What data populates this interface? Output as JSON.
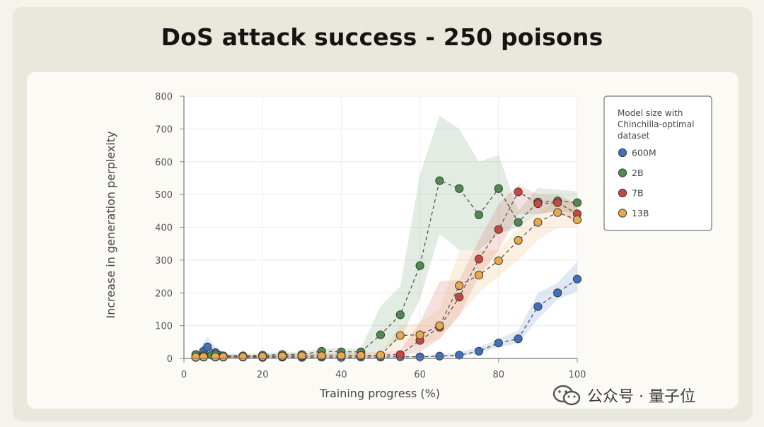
{
  "watermark": {
    "text": "公众号 · 量子位",
    "icon": "wechat-icon"
  },
  "colors": {
    "600M": "#3f6fbf",
    "2B": "#4f8a4e",
    "7B": "#c9473f",
    "13B": "#e9a94a"
  },
  "chart_data": {
    "type": "line",
    "title": "DoS attack success - 250 poisons",
    "xlabel": "Training progress (%)",
    "ylabel": "Increase in generation perplexity",
    "xlim": [
      0,
      100
    ],
    "ylim": [
      0,
      800
    ],
    "xticks": [
      "0",
      "20",
      "40",
      "60",
      "80",
      "100"
    ],
    "yticks": [
      "0",
      "100",
      "200",
      "300",
      "400",
      "500",
      "600",
      "700",
      "800"
    ],
    "grid": true,
    "legend": {
      "title": "Model size with Chinchilla-optimal dataset",
      "title_lines": [
        "Model size with",
        "Chinchilla-optimal",
        "dataset"
      ],
      "placement": "right",
      "entries": [
        "600M",
        "2B",
        "7B",
        "13B"
      ]
    },
    "series": [
      {
        "name": "600M",
        "x": [
          3,
          5,
          6,
          8,
          9,
          10,
          15,
          20,
          25,
          30,
          35,
          40,
          45,
          50,
          55,
          60,
          65,
          70,
          75,
          80,
          85,
          90,
          95,
          100
        ],
        "y": [
          5,
          22,
          35,
          18,
          10,
          5,
          4,
          3,
          4,
          3,
          4,
          3,
          4,
          4,
          5,
          5,
          7,
          10,
          22,
          47,
          60,
          158,
          200,
          242
        ],
        "lower": [
          0,
          5,
          10,
          5,
          3,
          1,
          1,
          1,
          1,
          1,
          1,
          1,
          1,
          1,
          2,
          2,
          3,
          5,
          15,
          35,
          45,
          120,
          180,
          205
        ],
        "upper": [
          15,
          50,
          65,
          35,
          20,
          12,
          8,
          7,
          8,
          7,
          8,
          7,
          8,
          8,
          9,
          9,
          12,
          18,
          35,
          60,
          85,
          200,
          230,
          295
        ]
      },
      {
        "name": "2B",
        "x": [
          3,
          5,
          7,
          8,
          10,
          15,
          20,
          25,
          30,
          35,
          40,
          45,
          50,
          55,
          60,
          65,
          70,
          75,
          80,
          85,
          90,
          95,
          100
        ],
        "y": [
          12,
          8,
          10,
          12,
          8,
          8,
          10,
          12,
          12,
          22,
          20,
          20,
          72,
          133,
          283,
          542,
          518,
          438,
          518,
          415,
          477,
          480,
          475
        ],
        "lower": [
          3,
          2,
          3,
          4,
          2,
          3,
          4,
          5,
          5,
          10,
          10,
          10,
          20,
          60,
          180,
          380,
          330,
          330,
          380,
          400,
          440,
          450,
          440
        ],
        "upper": [
          22,
          18,
          20,
          22,
          16,
          14,
          16,
          20,
          20,
          30,
          30,
          30,
          160,
          220,
          560,
          740,
          700,
          600,
          620,
          450,
          520,
          515,
          510
        ]
      },
      {
        "name": "7B",
        "x": [
          3,
          5,
          8,
          10,
          15,
          20,
          25,
          30,
          35,
          40,
          45,
          50,
          55,
          60,
          65,
          70,
          75,
          80,
          85,
          90,
          95,
          100
        ],
        "y": [
          3,
          4,
          4,
          4,
          5,
          5,
          6,
          7,
          8,
          8,
          9,
          10,
          12,
          55,
          95,
          187,
          303,
          393,
          508,
          472,
          475,
          441
        ],
        "lower": [
          0,
          1,
          1,
          1,
          2,
          2,
          3,
          3,
          3,
          3,
          4,
          5,
          6,
          20,
          60,
          130,
          250,
          330,
          440,
          440,
          450,
          410
        ],
        "upper": [
          8,
          10,
          10,
          10,
          10,
          10,
          12,
          14,
          15,
          15,
          16,
          18,
          25,
          110,
          235,
          240,
          360,
          470,
          530,
          500,
          500,
          470
        ]
      },
      {
        "name": "13B",
        "x": [
          3,
          5,
          8,
          10,
          15,
          20,
          25,
          30,
          35,
          40,
          45,
          50,
          55,
          60,
          65,
          70,
          75,
          80,
          85,
          90,
          95,
          100
        ],
        "y": [
          4,
          5,
          5,
          5,
          5,
          6,
          7,
          8,
          8,
          8,
          9,
          10,
          70,
          72,
          100,
          222,
          254,
          298,
          360,
          415,
          445,
          423
        ],
        "lower": [
          0,
          1,
          1,
          1,
          2,
          2,
          3,
          3,
          3,
          3,
          4,
          5,
          30,
          40,
          60,
          130,
          200,
          250,
          300,
          360,
          400,
          400
        ],
        "upper": [
          10,
          12,
          12,
          12,
          12,
          12,
          14,
          15,
          16,
          16,
          18,
          20,
          100,
          110,
          150,
          330,
          330,
          330,
          400,
          440,
          490,
          470
        ]
      }
    ]
  }
}
